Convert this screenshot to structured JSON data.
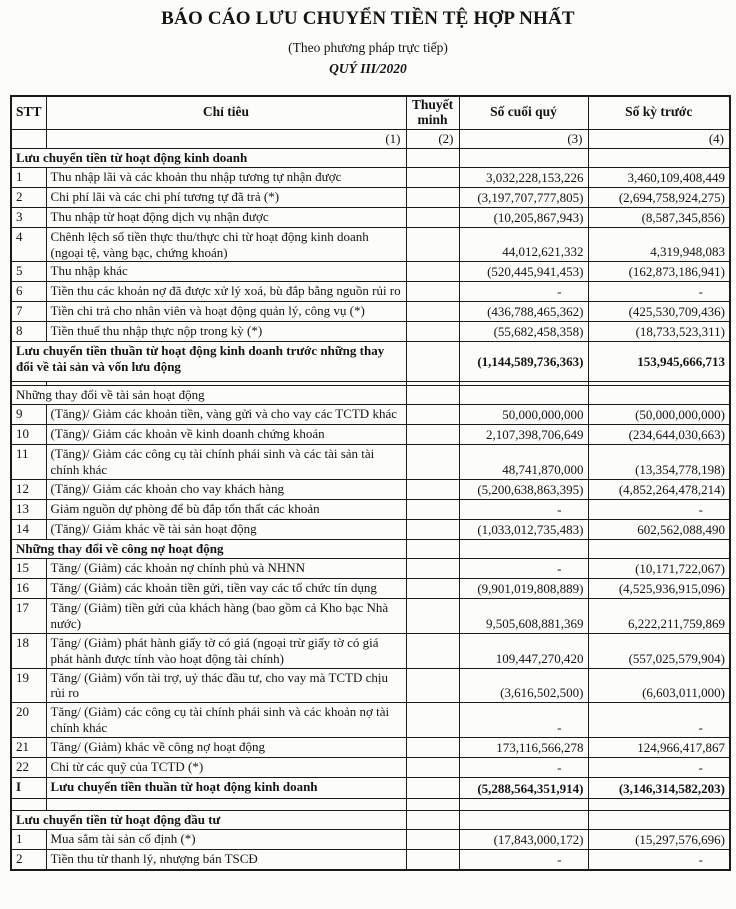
{
  "title": "BÁO CÁO LƯU CHUYỂN TIỀN TỆ HỢP NHẤT",
  "subtitle": "(Theo phương pháp trực tiếp)",
  "period": "QUÝ III/2020",
  "table": {
    "columns": [
      "STT",
      "Chỉ tiêu",
      "Thuyết minh",
      "Số cuối quý",
      "Số kỳ trước"
    ],
    "column_numbers": [
      "(1)",
      "(2)",
      "(3)",
      "(4)"
    ],
    "rows": [
      {
        "type": "section",
        "bold": true,
        "label": "Lưu chuyển tiền từ hoạt động kinh doanh",
        "note": "",
        "current": "",
        "previous": ""
      },
      {
        "type": "item",
        "stt": "1",
        "label": "Thu nhập lãi và các khoản thu nhập tương tự nhận được",
        "note": "",
        "current": "3,032,228,153,226",
        "previous": "3,460,109,408,449"
      },
      {
        "type": "item",
        "stt": "2",
        "label": "Chi phí lãi và các chi phí tương tự đã trả (*)",
        "note": "",
        "current": "(3,197,707,777,805)",
        "previous": "(2,694,758,924,275)"
      },
      {
        "type": "item",
        "stt": "3",
        "label": "Thu nhập từ hoạt động dịch vụ nhận được",
        "note": "",
        "current": "(10,205,867,943)",
        "previous": "(8,587,345,856)"
      },
      {
        "type": "item",
        "stt": "4",
        "label": "Chênh lệch số tiền thực thu/thực chi từ hoạt động kinh doanh (ngoại tệ, vàng bạc, chứng khoán)",
        "note": "",
        "current": "44,012,621,332",
        "previous": "4,319,948,083"
      },
      {
        "type": "item",
        "stt": "5",
        "label": "Thu nhập khác",
        "note": "",
        "current": "(520,445,941,453)",
        "previous": "(162,873,186,941)"
      },
      {
        "type": "item",
        "stt": "6",
        "label": "Tiền thu các khoản nợ đã được xử lý xoá, bù đắp bằng nguồn rủi ro",
        "note": "",
        "current": "-",
        "previous": "-"
      },
      {
        "type": "item",
        "stt": "7",
        "label": "Tiền chi trả cho nhân viên và hoạt động quản lý, công vụ (*)",
        "note": "",
        "current": "(436,788,465,362)",
        "previous": "(425,530,709,436)"
      },
      {
        "type": "item",
        "stt": "8",
        "label": "Tiền thuế thu nhập thực nộp trong kỳ (*)",
        "note": "",
        "current": "(55,682,458,358)",
        "previous": "(18,733,523,311)"
      },
      {
        "type": "subtotal",
        "bold": true,
        "stt": "",
        "label": "Lưu chuyển tiền thuần từ hoạt động kinh doanh trước những thay đổi về tài sản và vốn lưu động",
        "note": "",
        "current": "(1,144,589,736,363)",
        "previous": "153,945,666,713"
      },
      {
        "type": "spacer",
        "variant": "small"
      },
      {
        "type": "section",
        "bold": false,
        "label": "Những thay đổi về tài sản hoạt động",
        "note": "",
        "current": "",
        "previous": ""
      },
      {
        "type": "item",
        "stt": "9",
        "label": "(Tăng)/ Giảm các khoản tiền, vàng gửi và cho vay các TCTD khác",
        "note": "",
        "current": "50,000,000,000",
        "previous": "(50,000,000,000)"
      },
      {
        "type": "item",
        "stt": "10",
        "label": "(Tăng)/ Giảm các khoản về kinh doanh chứng khoán",
        "note": "",
        "current": "2,107,398,706,649",
        "previous": "(234,644,030,663)"
      },
      {
        "type": "item",
        "stt": "11",
        "label": "(Tăng)/ Giảm các công cụ tài chính phái sinh và các tài sản tài chính khác",
        "note": "",
        "current": "48,741,870,000",
        "previous": "(13,354,778,198)"
      },
      {
        "type": "item",
        "stt": "12",
        "label": "(Tăng)/ Giảm các khoản cho vay khách hàng",
        "note": "",
        "current": "(5,200,638,863,395)",
        "previous": "(4,852,264,478,214)"
      },
      {
        "type": "item",
        "stt": "13",
        "label": "Giảm nguồn dự phòng để bù đắp tổn thất các khoản",
        "note": "",
        "current": "-",
        "previous": "-"
      },
      {
        "type": "item",
        "stt": "14",
        "label": "(Tăng)/ Giảm khác về tài sản hoạt động",
        "note": "",
        "current": "(1,033,012,735,483)",
        "previous": "602,562,088,490"
      },
      {
        "type": "section",
        "bold": true,
        "label": "Những thay đổi về công nợ hoạt động",
        "note": "",
        "current": "",
        "previous": ""
      },
      {
        "type": "item",
        "stt": "15",
        "label": "Tăng/ (Giảm) các khoản nợ chính phủ và NHNN",
        "note": "",
        "current": "-",
        "previous": "(10,171,722,067)"
      },
      {
        "type": "item",
        "stt": "16",
        "label": "Tăng/ (Giảm) các khoản tiền gửi, tiền vay các tổ chức tín dụng",
        "note": "",
        "current": "(9,901,019,808,889)",
        "previous": "(4,525,936,915,096)"
      },
      {
        "type": "item",
        "stt": "17",
        "label": "Tăng/ (Giảm) tiền gửi của khách hàng (bao gồm cả Kho bạc Nhà nước)",
        "note": "",
        "current": "9,505,608,881,369",
        "previous": "6,222,211,759,869"
      },
      {
        "type": "item",
        "stt": "18",
        "label": "Tăng/ (Giảm) phát hành giấy tờ có giá (ngoại trừ giấy tờ có giá phát hành được tính vào hoạt động tài chính)",
        "note": "",
        "current": "109,447,270,420",
        "previous": "(557,025,579,904)"
      },
      {
        "type": "item",
        "stt": "19",
        "label": "Tăng/ (Giảm) vốn tài trợ, uỷ thác đầu tư, cho vay mà TCTD chịu rủi ro",
        "note": "",
        "current": "(3,616,502,500)",
        "previous": "(6,603,011,000)"
      },
      {
        "type": "item",
        "stt": "20",
        "label": "Tăng/ (Giảm) các công cụ tài chính phái sinh và các khoản nợ  tài chính khác",
        "note": "",
        "current": "-",
        "previous": "-"
      },
      {
        "type": "item",
        "stt": "21",
        "label": "Tăng/ (Giảm) khác về công nợ hoạt động",
        "note": "",
        "current": "173,116,566,278",
        "previous": "124,966,417,867"
      },
      {
        "type": "item",
        "stt": "22",
        "label": "Chi từ các quỹ của TCTD (*)",
        "note": "",
        "current": "-",
        "previous": "-"
      },
      {
        "type": "total",
        "bold": true,
        "stt": "I",
        "label": "Lưu chuyển tiền thuần từ hoạt động kinh doanh",
        "note": "",
        "current": "(5,288,564,351,914)",
        "previous": "(3,146,314,582,203)"
      },
      {
        "type": "spacer",
        "variant": "medium"
      },
      {
        "type": "section",
        "bold": true,
        "label": "Lưu chuyển tiền từ hoạt động đầu tư",
        "note": "",
        "current": "",
        "previous": ""
      },
      {
        "type": "item",
        "stt": "1",
        "label": "Mua sắm tài sản cố định (*)",
        "note": "",
        "current": "(17,843,000,172)",
        "previous": "(15,297,576,696)"
      },
      {
        "type": "item",
        "stt": "2",
        "label": "Tiền thu từ thanh lý, nhượng bán TSCĐ",
        "note": "",
        "current": "-",
        "previous": "-"
      }
    ]
  }
}
